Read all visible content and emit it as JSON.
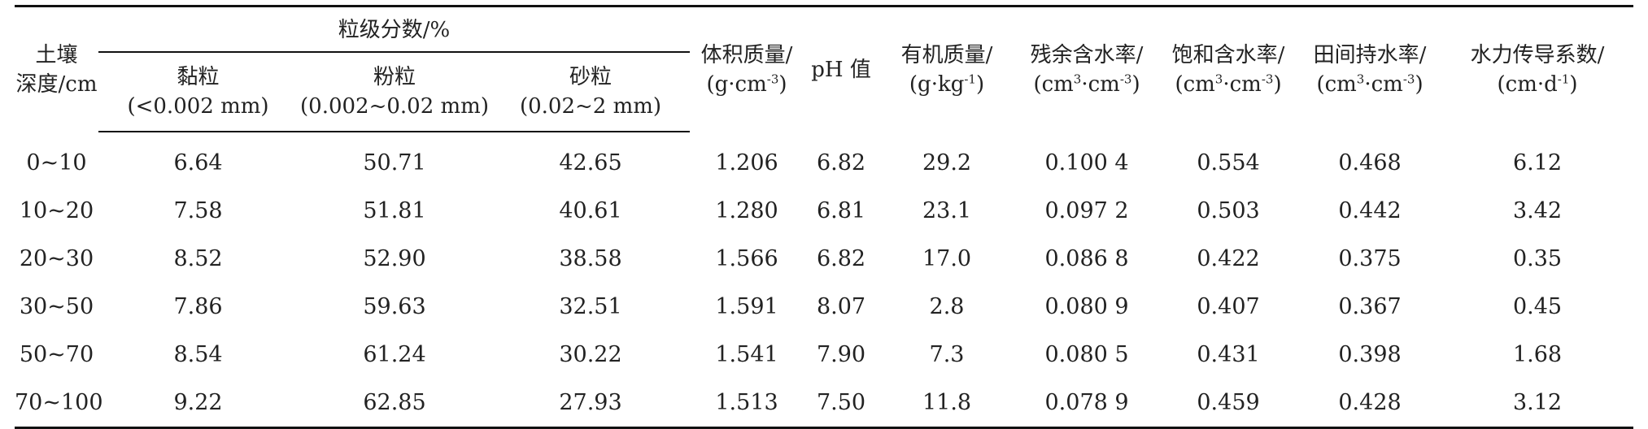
{
  "table": {
    "headers": {
      "depth": [
        "土壤",
        "深度/cm"
      ],
      "particle_group": "粒级分数/%",
      "clay": [
        "黏粒",
        "(<0.002 mm)"
      ],
      "silt": [
        "粉粒",
        "(0.002~0.02 mm)"
      ],
      "sand": [
        "砂粒",
        "(0.02~2 mm)"
      ],
      "bulk_density": {
        "name": "体积质量/",
        "unit_a": "(g·cm",
        "unit_sup": "-3",
        "unit_b": ")"
      },
      "ph": "pH 值",
      "organic_matter": {
        "name": "有机质量/",
        "unit_a": "(g·kg",
        "unit_sup": "-1",
        "unit_b": ")"
      },
      "residual_water": {
        "name": "残余含水率/",
        "unit_a": "(cm",
        "unit_sup1": "3",
        "unit_mid": "·cm",
        "unit_sup2": "-3",
        "unit_b": ")"
      },
      "saturated_water": {
        "name": "饱和含水率/",
        "unit_a": "(cm",
        "unit_sup1": "3",
        "unit_mid": "·cm",
        "unit_sup2": "-3",
        "unit_b": ")"
      },
      "field_capacity": {
        "name": "田间持水率/",
        "unit_a": "(cm",
        "unit_sup1": "3",
        "unit_mid": "·cm",
        "unit_sup2": "-3",
        "unit_b": ")"
      },
      "hydraulic_conductivity": {
        "name": "水力传导系数/",
        "unit_a": "(cm·d",
        "unit_sup": "-1",
        "unit_b": ")"
      }
    },
    "rows": [
      [
        "0~10",
        "6.64",
        "50.71",
        "42.65",
        "1.206",
        "6.82",
        "29.2",
        "0.100 4",
        "0.554",
        "0.468",
        "6.12"
      ],
      [
        "10~20",
        "7.58",
        "51.81",
        "40.61",
        "1.280",
        "6.81",
        "23.1",
        "0.097 2",
        "0.503",
        "0.442",
        "3.42"
      ],
      [
        "20~30",
        "8.52",
        "52.90",
        "38.58",
        "1.566",
        "6.82",
        "17.0",
        "0.086 8",
        "0.422",
        "0.375",
        "0.35"
      ],
      [
        "30~50",
        "7.86",
        "59.63",
        "32.51",
        "1.591",
        "8.07",
        "2.8",
        "0.080 9",
        "0.407",
        "0.367",
        "0.45"
      ],
      [
        "50~70",
        "8.54",
        "61.24",
        "30.22",
        "1.541",
        "7.90",
        "7.3",
        "0.080 5",
        "0.431",
        "0.398",
        "1.68"
      ],
      [
        "70~100",
        "9.22",
        "62.85",
        "27.93",
        "1.513",
        "7.50",
        "11.8",
        "0.078 9",
        "0.459",
        "0.428",
        "3.12"
      ]
    ]
  }
}
